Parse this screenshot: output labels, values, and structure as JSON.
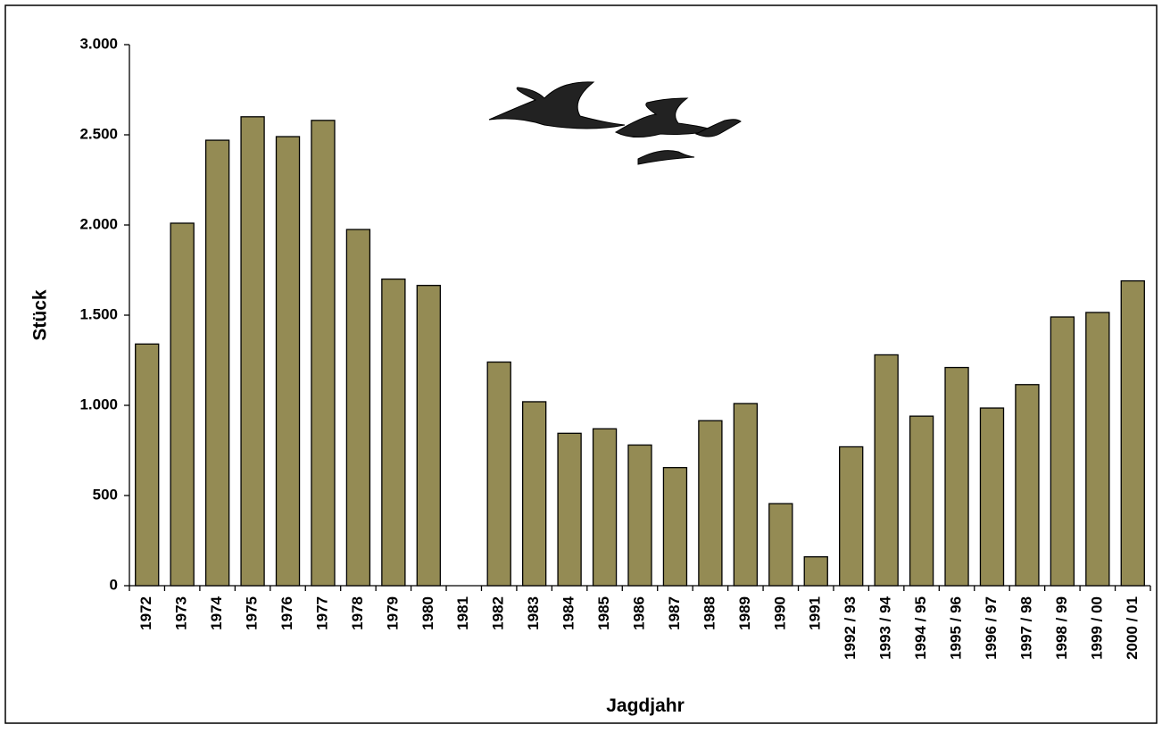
{
  "chart_data": {
    "type": "bar",
    "x_label": "Jagdjahr",
    "y_label": "Stück",
    "categories": [
      "1972",
      "1973",
      "1974",
      "1975",
      "1976",
      "1977",
      "1978",
      "1979",
      "1980",
      "1981",
      "1982",
      "1983",
      "1984",
      "1985",
      "1986",
      "1987",
      "1988",
      "1989",
      "1990",
      "1991",
      "1992 / 93",
      "1993 / 94",
      "1994 / 95",
      "1995 / 96",
      "1996 / 97",
      "1997 / 98",
      "1998 / 99",
      "1999 / 00",
      "2000 / 01"
    ],
    "values": [
      1340,
      2010,
      2470,
      2600,
      2490,
      2580,
      1975,
      1700,
      1665,
      null,
      1240,
      1020,
      845,
      870,
      780,
      655,
      915,
      1010,
      455,
      160,
      770,
      1280,
      940,
      1210,
      985,
      1115,
      1490,
      1515,
      1690
    ],
    "color": "#948b54",
    "ylim": [
      0,
      3000
    ],
    "yticks": [
      0,
      500,
      {
        "value": 1000,
        "label": "1.000"
      },
      {
        "value": 1500,
        "label": "1.500"
      },
      {
        "value": 2000,
        "label": "2.000"
      },
      {
        "value": 2500,
        "label": "2.500"
      },
      {
        "value": 3000,
        "label": "3.000"
      }
    ],
    "grid": false
  }
}
